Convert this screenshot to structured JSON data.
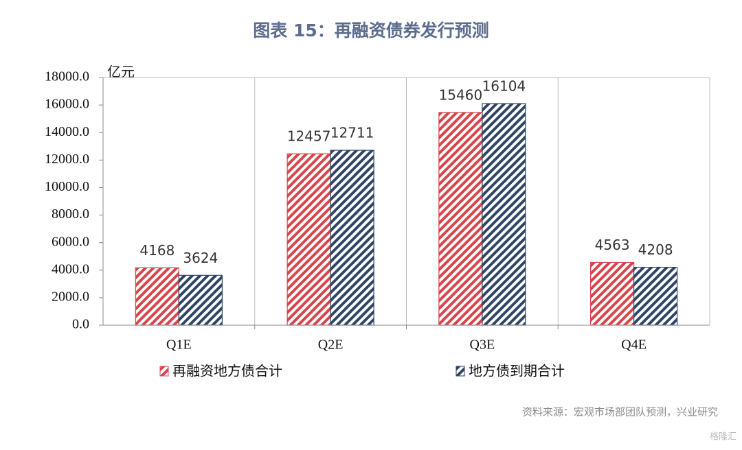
{
  "chart_data": {
    "type": "bar",
    "title": "图表 15：再融资债券发行预测",
    "y_unit": "亿元",
    "source": "资料来源：宏观市场部团队预测，兴业研究",
    "watermark": "格隆汇",
    "categories": [
      "Q1E",
      "Q2E",
      "Q3E",
      "Q4E"
    ],
    "series": [
      {
        "name": "再融资地方债合计",
        "color": "#d9434a",
        "values": [
          4168,
          12457,
          15460,
          4563
        ]
      },
      {
        "name": "地方债到期合计",
        "color": "#2f4566",
        "values": [
          3624,
          12711,
          16104,
          4208
        ]
      }
    ],
    "ylim": [
      0,
      18000
    ],
    "yticks": [
      {
        "value": 0,
        "label": "0.0"
      },
      {
        "value": 2000,
        "label": "2000.0"
      },
      {
        "value": 4000,
        "label": "4000.0"
      },
      {
        "value": 6000,
        "label": "6000.0"
      },
      {
        "value": 8000,
        "label": "8000.0"
      },
      {
        "value": 10000,
        "label": "10000.0"
      },
      {
        "value": 12000,
        "label": "12000.0"
      },
      {
        "value": 14000,
        "label": "14000.0"
      },
      {
        "value": 16000,
        "label": "16000.0"
      },
      {
        "value": 18000,
        "label": "18000.0"
      }
    ],
    "hatched": true
  }
}
